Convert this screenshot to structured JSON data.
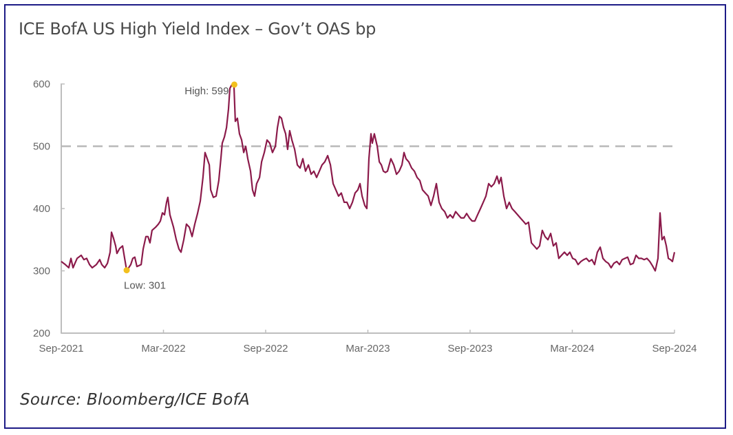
{
  "chart_data": {
    "type": "line",
    "title": "ICE BofA US High Yield Index – Gov’t OAS bp",
    "source": "Source: Bloomberg/ICE BofA",
    "xlabel": "",
    "ylabel": "",
    "ylim": [
      200,
      600
    ],
    "xlim_months": [
      0,
      36
    ],
    "yticks": [
      200,
      300,
      400,
      500,
      600
    ],
    "xticks": [
      {
        "label": "Sep-2021",
        "month": 0
      },
      {
        "label": "Mar-2022",
        "month": 6
      },
      {
        "label": "Sep-2022",
        "month": 12
      },
      {
        "label": "Mar-2023",
        "month": 18
      },
      {
        "label": "Sep-2023",
        "month": 24
      },
      {
        "label": "Mar-2024",
        "month": 30
      },
      {
        "label": "Sep-2024",
        "month": 36
      }
    ],
    "reference_line": {
      "value": 500,
      "style": "dashed",
      "color": "#b8b8b8"
    },
    "line_color": "#8b1a4a",
    "marker_color": "#f2c01e",
    "grid": false,
    "annotations": [
      {
        "label": "High: 599",
        "month": 10.16,
        "value": 599
      },
      {
        "label": "Low: 301",
        "month": 3.84,
        "value": 301
      }
    ],
    "series": [
      {
        "name": "Gov't OAS bp",
        "points": [
          [
            0.0,
            315
          ],
          [
            0.24,
            310
          ],
          [
            0.44,
            305
          ],
          [
            0.57,
            320
          ],
          [
            0.69,
            305
          ],
          [
            0.93,
            320
          ],
          [
            1.17,
            325
          ],
          [
            1.33,
            318
          ],
          [
            1.49,
            320
          ],
          [
            1.66,
            310
          ],
          [
            1.82,
            305
          ],
          [
            2.06,
            310
          ],
          [
            2.26,
            318
          ],
          [
            2.38,
            310
          ],
          [
            2.55,
            305
          ],
          [
            2.71,
            312
          ],
          [
            2.87,
            330
          ],
          [
            2.95,
            362
          ],
          [
            3.07,
            352
          ],
          [
            3.19,
            340
          ],
          [
            3.27,
            328
          ],
          [
            3.43,
            336
          ],
          [
            3.6,
            340
          ],
          [
            3.72,
            320
          ],
          [
            3.84,
            301
          ],
          [
            3.96,
            305
          ],
          [
            4.08,
            310
          ],
          [
            4.2,
            320
          ],
          [
            4.32,
            322
          ],
          [
            4.44,
            307
          ],
          [
            4.69,
            310
          ],
          [
            4.81,
            335
          ],
          [
            4.97,
            355
          ],
          [
            5.09,
            355
          ],
          [
            5.21,
            345
          ],
          [
            5.33,
            365
          ],
          [
            5.54,
            370
          ],
          [
            5.7,
            375
          ],
          [
            5.82,
            380
          ],
          [
            5.94,
            393
          ],
          [
            6.06,
            390
          ],
          [
            6.18,
            410
          ],
          [
            6.26,
            418
          ],
          [
            6.38,
            390
          ],
          [
            6.59,
            370
          ],
          [
            6.75,
            350
          ],
          [
            6.91,
            335
          ],
          [
            7.03,
            330
          ],
          [
            7.19,
            350
          ],
          [
            7.35,
            375
          ],
          [
            7.52,
            370
          ],
          [
            7.68,
            355
          ],
          [
            7.84,
            375
          ],
          [
            8.0,
            392
          ],
          [
            8.16,
            412
          ],
          [
            8.32,
            450
          ],
          [
            8.44,
            490
          ],
          [
            8.57,
            480
          ],
          [
            8.69,
            470
          ],
          [
            8.77,
            430
          ],
          [
            8.93,
            418
          ],
          [
            9.09,
            420
          ],
          [
            9.25,
            445
          ],
          [
            9.37,
            480
          ],
          [
            9.45,
            505
          ],
          [
            9.58,
            515
          ],
          [
            9.7,
            530
          ],
          [
            9.82,
            560
          ],
          [
            9.9,
            593
          ],
          [
            10.02,
            599
          ],
          [
            10.14,
            595
          ],
          [
            10.22,
            540
          ],
          [
            10.34,
            545
          ],
          [
            10.46,
            520
          ],
          [
            10.59,
            510
          ],
          [
            10.71,
            490
          ],
          [
            10.83,
            500
          ],
          [
            10.95,
            480
          ],
          [
            11.11,
            460
          ],
          [
            11.23,
            430
          ],
          [
            11.35,
            420
          ],
          [
            11.47,
            440
          ],
          [
            11.64,
            450
          ],
          [
            11.76,
            475
          ],
          [
            11.92,
            490
          ],
          [
            12.08,
            510
          ],
          [
            12.24,
            505
          ],
          [
            12.4,
            490
          ],
          [
            12.57,
            500
          ],
          [
            12.69,
            530
          ],
          [
            12.81,
            548
          ],
          [
            12.93,
            545
          ],
          [
            13.05,
            530
          ],
          [
            13.17,
            520
          ],
          [
            13.29,
            495
          ],
          [
            13.41,
            525
          ],
          [
            13.54,
            510
          ],
          [
            13.7,
            495
          ],
          [
            13.86,
            470
          ],
          [
            14.02,
            465
          ],
          [
            14.18,
            480
          ],
          [
            14.34,
            460
          ],
          [
            14.51,
            470
          ],
          [
            14.67,
            455
          ],
          [
            14.83,
            460
          ],
          [
            14.99,
            450
          ],
          [
            15.15,
            460
          ],
          [
            15.31,
            470
          ],
          [
            15.47,
            475
          ],
          [
            15.64,
            485
          ],
          [
            15.8,
            470
          ],
          [
            15.96,
            440
          ],
          [
            16.12,
            430
          ],
          [
            16.28,
            420
          ],
          [
            16.44,
            425
          ],
          [
            16.61,
            410
          ],
          [
            16.77,
            410
          ],
          [
            16.93,
            400
          ],
          [
            17.09,
            410
          ],
          [
            17.25,
            425
          ],
          [
            17.41,
            430
          ],
          [
            17.54,
            440
          ],
          [
            17.66,
            420
          ],
          [
            17.82,
            405
          ],
          [
            17.94,
            400
          ],
          [
            18.06,
            480
          ],
          [
            18.18,
            520
          ],
          [
            18.26,
            505
          ],
          [
            18.38,
            520
          ],
          [
            18.55,
            500
          ],
          [
            18.67,
            475
          ],
          [
            18.79,
            470
          ],
          [
            18.91,
            460
          ],
          [
            19.03,
            458
          ],
          [
            19.15,
            460
          ],
          [
            19.35,
            480
          ],
          [
            19.52,
            470
          ],
          [
            19.68,
            455
          ],
          [
            19.84,
            460
          ],
          [
            20.0,
            470
          ],
          [
            20.12,
            490
          ],
          [
            20.24,
            480
          ],
          [
            20.4,
            475
          ],
          [
            20.57,
            465
          ],
          [
            20.73,
            460
          ],
          [
            20.89,
            450
          ],
          [
            21.05,
            445
          ],
          [
            21.21,
            430
          ],
          [
            21.37,
            425
          ],
          [
            21.54,
            420
          ],
          [
            21.7,
            405
          ],
          [
            21.86,
            420
          ],
          [
            22.02,
            440
          ],
          [
            22.18,
            410
          ],
          [
            22.34,
            400
          ],
          [
            22.51,
            395
          ],
          [
            22.67,
            385
          ],
          [
            22.83,
            390
          ],
          [
            22.99,
            385
          ],
          [
            23.15,
            395
          ],
          [
            23.31,
            390
          ],
          [
            23.47,
            385
          ],
          [
            23.64,
            385
          ],
          [
            23.8,
            392
          ],
          [
            23.96,
            385
          ],
          [
            24.12,
            380
          ],
          [
            24.28,
            380
          ],
          [
            24.44,
            390
          ],
          [
            24.61,
            400
          ],
          [
            24.77,
            410
          ],
          [
            24.93,
            420
          ],
          [
            25.09,
            440
          ],
          [
            25.25,
            435
          ],
          [
            25.41,
            440
          ],
          [
            25.58,
            452
          ],
          [
            25.7,
            440
          ],
          [
            25.82,
            450
          ],
          [
            25.98,
            420
          ],
          [
            26.14,
            400
          ],
          [
            26.3,
            410
          ],
          [
            26.46,
            400
          ],
          [
            26.63,
            395
          ],
          [
            26.79,
            390
          ],
          [
            26.95,
            385
          ],
          [
            27.11,
            380
          ],
          [
            27.27,
            375
          ],
          [
            27.43,
            378
          ],
          [
            27.6,
            345
          ],
          [
            27.76,
            340
          ],
          [
            27.92,
            335
          ],
          [
            28.08,
            340
          ],
          [
            28.24,
            365
          ],
          [
            28.4,
            355
          ],
          [
            28.57,
            350
          ],
          [
            28.73,
            360
          ],
          [
            28.89,
            340
          ],
          [
            29.05,
            345
          ],
          [
            29.21,
            320
          ],
          [
            29.37,
            325
          ],
          [
            29.54,
            330
          ],
          [
            29.7,
            325
          ],
          [
            29.86,
            330
          ],
          [
            30.02,
            320
          ],
          [
            30.18,
            318
          ],
          [
            30.34,
            310
          ],
          [
            30.51,
            315
          ],
          [
            30.67,
            318
          ],
          [
            30.83,
            320
          ],
          [
            30.99,
            315
          ],
          [
            31.15,
            318
          ],
          [
            31.31,
            310
          ],
          [
            31.47,
            330
          ],
          [
            31.64,
            338
          ],
          [
            31.8,
            320
          ],
          [
            31.96,
            315
          ],
          [
            32.12,
            312
          ],
          [
            32.28,
            305
          ],
          [
            32.44,
            312
          ],
          [
            32.61,
            315
          ],
          [
            32.77,
            310
          ],
          [
            32.93,
            318
          ],
          [
            33.09,
            320
          ],
          [
            33.25,
            322
          ],
          [
            33.41,
            310
          ],
          [
            33.58,
            312
          ],
          [
            33.74,
            325
          ],
          [
            33.9,
            320
          ],
          [
            34.06,
            320
          ],
          [
            34.22,
            318
          ],
          [
            34.38,
            320
          ],
          [
            34.55,
            315
          ],
          [
            34.71,
            308
          ],
          [
            34.87,
            300
          ],
          [
            35.03,
            320
          ],
          [
            35.15,
            393
          ],
          [
            35.27,
            350
          ],
          [
            35.39,
            355
          ],
          [
            35.52,
            340
          ],
          [
            35.64,
            320
          ],
          [
            35.76,
            318
          ],
          [
            35.88,
            315
          ],
          [
            36.0,
            330
          ]
        ]
      }
    ]
  }
}
